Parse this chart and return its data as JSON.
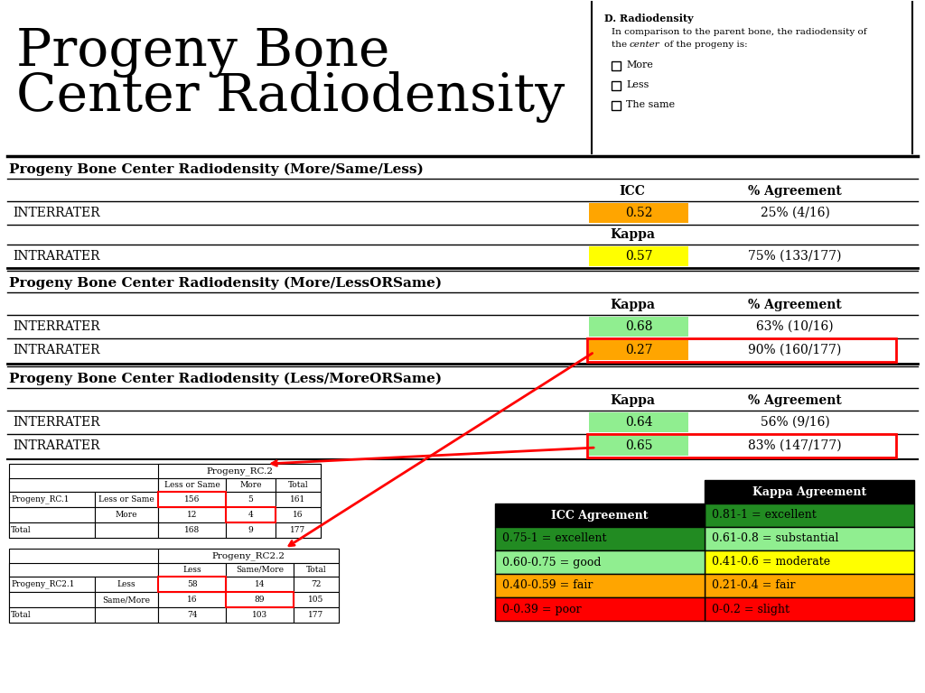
{
  "title_line1": "Progeny Bone",
  "title_line2": "Center Radiodensity",
  "questionnaire_title": "D. Radiodensity",
  "questionnaire_line1": "In comparison to the parent bone, the radiodensity of",
  "questionnaire_line2": "the ",
  "questionnaire_line2_italic": "center",
  "questionnaire_line2_rest": " of the progeny is:",
  "questionnaire_options": [
    "More",
    "Less",
    "The same"
  ],
  "section1_title": "Progeny Bone Center Radiodensity (More/Same/Less)",
  "section1_header1": "ICC",
  "section1_header2": "% Agreement",
  "section1_inter_label": "INTERRATER",
  "section1_inter_icc": "0.52",
  "section1_inter_icc_color": "#FFA500",
  "section1_inter_agree": "25% (4/16)",
  "section1_kappa_label": "Kappa",
  "section1_intra_label": "INTRARATER",
  "section1_intra_kappa": "0.57",
  "section1_intra_kappa_color": "#FFFF00",
  "section1_intra_agree": "75% (133/177)",
  "section2_title": "Progeny Bone Center Radiodensity (More/LessORSame)",
  "section2_header1": "Kappa",
  "section2_header2": "% Agreement",
  "section2_inter_label": "INTERRATER",
  "section2_inter_kappa": "0.68",
  "section2_inter_kappa_color": "#90EE90",
  "section2_inter_agree": "63% (10/16)",
  "section2_intra_label": "INTRARATER",
  "section2_intra_kappa": "0.27",
  "section2_intra_kappa_color": "#FFA500",
  "section2_intra_agree": "90% (160/177)",
  "section3_title": "Progeny Bone Center Radiodensity (Less/MoreORSame)",
  "section3_header1": "Kappa",
  "section3_header2": "% Agreement",
  "section3_inter_label": "INTERRATER",
  "section3_inter_kappa": "0.64",
  "section3_inter_kappa_color": "#90EE90",
  "section3_inter_agree": "56% (9/16)",
  "section3_intra_label": "INTRARATER",
  "section3_intra_kappa": "0.65",
  "section3_intra_kappa_color": "#90EE90",
  "section3_intra_agree": "83% (147/177)",
  "table1_title": "Progeny_RC.2",
  "table1_col1": "Less or Same",
  "table1_col2": "More",
  "table1_col3": "Total",
  "table1_row1_label1": "Progeny_RC.1",
  "table1_row1_label2": "Less or Same",
  "table1_row1_v1": "156",
  "table1_row1_v2": "5",
  "table1_row1_v3": "161",
  "table1_row2_label": "More",
  "table1_row2_v1": "12",
  "table1_row2_v2": "4",
  "table1_row2_v3": "16",
  "table1_row3_label": "Total",
  "table1_row3_v1": "168",
  "table1_row3_v2": "9",
  "table1_row3_v3": "177",
  "table2_title": "Progeny_RC2.2",
  "table2_col1": "Less",
  "table2_col2": "Same/More",
  "table2_col3": "Total",
  "table2_row1_label1": "Progeny_RC2.1",
  "table2_row1_label2": "Less",
  "table2_row1_v1": "58",
  "table2_row1_v2": "14",
  "table2_row1_v3": "72",
  "table2_row2_label": "Same/More",
  "table2_row2_v1": "16",
  "table2_row2_v2": "89",
  "table2_row2_v3": "105",
  "table2_row3_label": "Total",
  "table2_row3_v1": "74",
  "table2_row3_v2": "103",
  "table2_row3_v3": "177",
  "legend_icc_title": "ICC Agreement",
  "legend_icc_rows": [
    {
      "text": "0.75-1 = excellent",
      "color": "#228B22"
    },
    {
      "text": "0.60-0.75 = good",
      "color": "#90EE90"
    },
    {
      "text": "0.40-0.59 = fair",
      "color": "#FFA500"
    },
    {
      "text": "0-0.39 = poor",
      "color": "#FF0000"
    }
  ],
  "legend_kappa_title": "Kappa Agreement",
  "legend_kappa_rows": [
    {
      "text": "0.81-1 = excellent",
      "color": "#228B22"
    },
    {
      "text": "0.61-0.8 = substantial",
      "color": "#90EE90"
    },
    {
      "text": "0.41-0.6 = moderate",
      "color": "#FFFF00"
    },
    {
      "text": "0.21-0.4 = fair",
      "color": "#FFA500"
    },
    {
      "text": "0-0.2 = slight",
      "color": "#FF0000"
    }
  ],
  "bg_color": "#FFFFFF"
}
